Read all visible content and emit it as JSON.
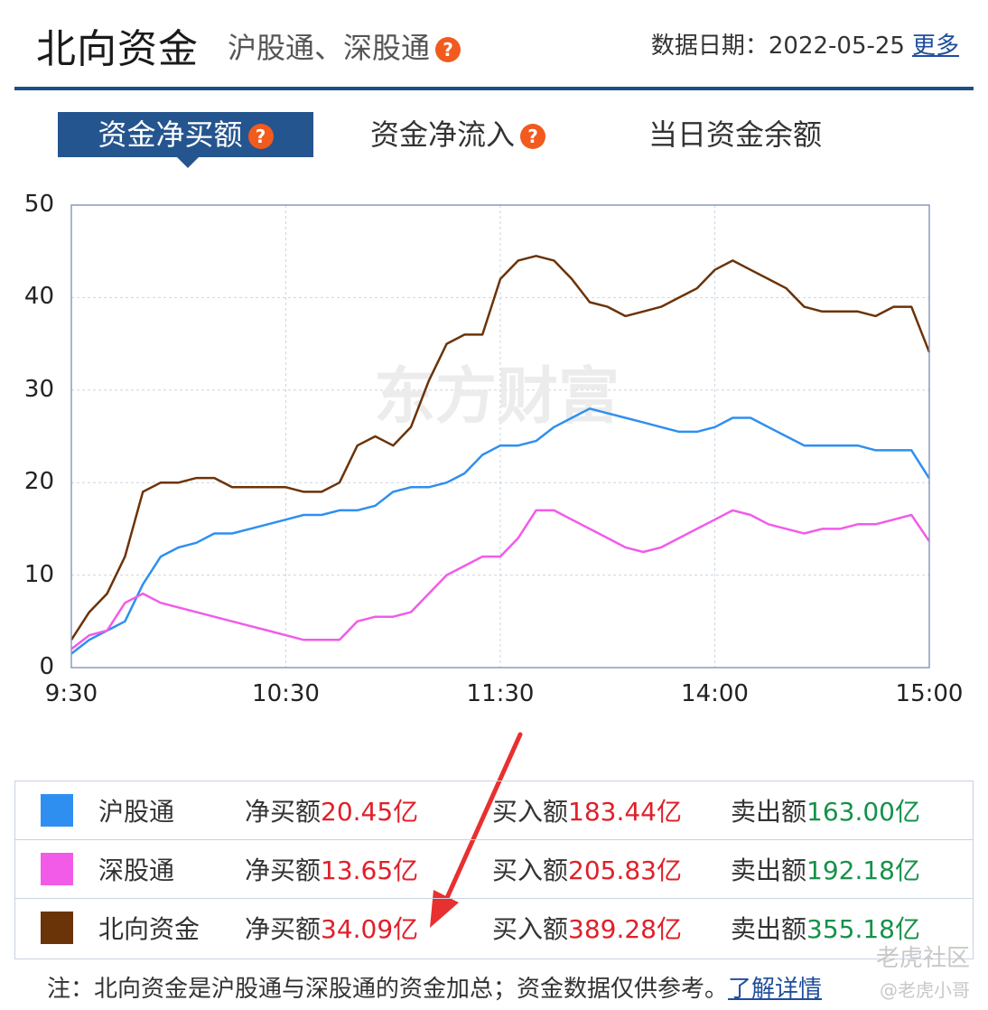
{
  "header": {
    "title": "北向资金",
    "subtitle": "沪股通、深股通",
    "date_label": "数据日期：",
    "date_value": "2022-05-25",
    "more_link": "更多"
  },
  "tabs": [
    {
      "label": "资金净买额",
      "active": true,
      "help": true
    },
    {
      "label": "资金净流入",
      "active": false,
      "help": true
    },
    {
      "label": "当日资金余额",
      "active": false,
      "help": false
    }
  ],
  "chart_data": {
    "type": "line",
    "y_ticks": [
      "0",
      "10",
      "20",
      "30",
      "40",
      "50"
    ],
    "ylim": [
      0,
      50
    ],
    "x_ticks": [
      "9:30",
      "10:30",
      "11:30",
      "14:00",
      "15:00"
    ],
    "x": [
      0,
      5,
      10,
      15,
      20,
      25,
      30,
      35,
      40,
      45,
      50,
      55,
      60,
      65,
      70,
      75,
      80,
      85,
      90,
      95,
      100,
      105,
      110,
      115,
      120,
      125,
      130,
      135,
      140,
      145,
      150,
      155,
      160,
      165,
      170,
      175,
      180,
      185,
      190,
      195,
      200,
      205,
      210,
      215,
      220,
      225,
      230,
      235,
      240
    ],
    "series": [
      {
        "name": "沪股通",
        "color": "#2f8ff0",
        "values": [
          1.5,
          3,
          4,
          5,
          9,
          12,
          13,
          13.5,
          14.5,
          14.5,
          15,
          15.5,
          16,
          16.5,
          16.5,
          17,
          17,
          17.5,
          19,
          19.5,
          19.5,
          20,
          21,
          23,
          24,
          24,
          24.5,
          26,
          27,
          28,
          27.5,
          27,
          26.5,
          26,
          25.5,
          25.5,
          26,
          27,
          27,
          26,
          25,
          24,
          24,
          24,
          24,
          23.5,
          23.5,
          23.5,
          20.45
        ]
      },
      {
        "name": "深股通",
        "color": "#f25be8",
        "values": [
          2,
          3.5,
          4,
          7,
          8,
          7,
          6.5,
          6,
          5.5,
          5,
          4.5,
          4,
          3.5,
          3,
          3,
          3,
          5,
          5.5,
          5.5,
          6,
          8,
          10,
          11,
          12,
          12,
          14,
          17,
          17,
          16,
          15,
          14,
          13,
          12.5,
          13,
          14,
          15,
          16,
          17,
          16.5,
          15.5,
          15,
          14.5,
          15,
          15,
          15.5,
          15.5,
          16,
          16.5,
          13.65
        ]
      },
      {
        "name": "北向资金",
        "color": "#6b3308",
        "values": [
          3,
          6,
          8,
          12,
          19,
          20,
          20,
          20.5,
          20.5,
          19.5,
          19.5,
          19.5,
          19.5,
          19,
          19,
          20,
          24,
          25,
          24,
          26,
          31,
          35,
          36,
          36,
          42,
          44,
          44.5,
          44,
          42,
          39.5,
          39,
          38,
          38.5,
          39,
          40,
          41,
          43,
          44,
          43,
          42,
          41,
          39,
          38.5,
          38.5,
          38.5,
          38,
          39,
          39,
          34.09
        ]
      }
    ]
  },
  "watermark": {
    "chart": "东方财富",
    "footer": "老虎社区",
    "author": "@老虎小哥"
  },
  "legend": [
    {
      "name": "沪股通",
      "color": "#2f8ff0",
      "net_label": "净买额",
      "net": "20.45亿",
      "buy_label": "买入额",
      "buy": "183.44亿",
      "sell_label": "卖出额",
      "sell": "163.00亿"
    },
    {
      "name": "深股通",
      "color": "#f25be8",
      "net_label": "净买额",
      "net": "13.65亿",
      "buy_label": "买入额",
      "buy": "205.83亿",
      "sell_label": "卖出额",
      "sell": "192.18亿"
    },
    {
      "name": "北向资金",
      "color": "#6b3308",
      "net_label": "净买额",
      "net": "34.09亿",
      "buy_label": "买入额",
      "buy": "389.28亿",
      "sell_label": "卖出额",
      "sell": "355.18亿"
    }
  ],
  "note": {
    "text": "注：北向资金是沪股通与深股通的资金加总；资金数据仅供参考。",
    "link": "了解详情"
  }
}
